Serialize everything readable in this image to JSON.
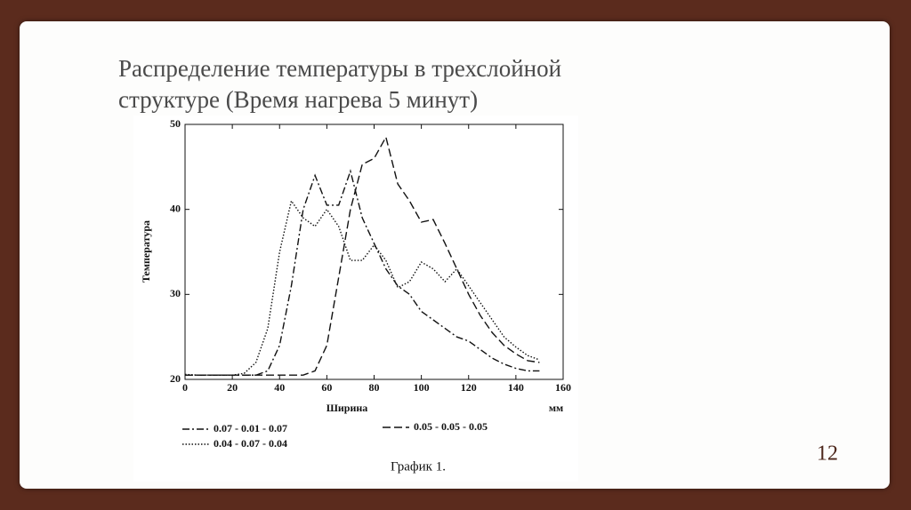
{
  "slide": {
    "title_lines": [
      "Распределение температуры в трехслойной",
      "структуре (Время нагрева 5 минут)"
    ],
    "caption": "График 1.",
    "page_number": "12"
  },
  "chart_data": {
    "type": "line",
    "xlabel": "Ширина",
    "x_unit": "мм",
    "ylabel": "Температура",
    "x": [
      0,
      5,
      10,
      15,
      20,
      25,
      30,
      35,
      40,
      45,
      50,
      55,
      60,
      65,
      70,
      75,
      80,
      85,
      90,
      95,
      100,
      105,
      110,
      115,
      120,
      125,
      130,
      135,
      140,
      145,
      150
    ],
    "series": [
      {
        "name": "0.07 - 0.01 - 0.07",
        "color": "#111111",
        "dash": "dash-dot",
        "values": [
          20.5,
          20.5,
          20.5,
          20.5,
          20.5,
          20.5,
          20.5,
          21,
          24,
          31,
          40,
          44,
          40.5,
          40.5,
          44.5,
          39,
          36,
          33,
          31,
          30,
          28,
          27,
          26,
          25,
          24.5,
          23.5,
          22.5,
          21.8,
          21.3,
          21,
          21
        ]
      },
      {
        "name": "0.04 - 0.07 - 0.04",
        "color": "#111111",
        "dash": "dotted",
        "values": [
          20.6,
          20.5,
          20.5,
          20.5,
          20.5,
          20.7,
          22,
          26,
          35,
          41,
          39,
          38,
          40,
          38,
          34,
          34,
          35.8,
          34,
          30.8,
          31.5,
          33.8,
          33,
          31.5,
          33,
          31,
          29,
          27,
          25,
          23.8,
          22.8,
          22.3
        ]
      },
      {
        "name": "0.05 - 0.05 - 0.05",
        "color": "#111111",
        "dash": "dashed",
        "values": [
          20.5,
          20.5,
          20.5,
          20.5,
          20.5,
          20.5,
          20.5,
          20.5,
          20.5,
          20.5,
          20.5,
          21,
          24,
          32,
          40,
          45.3,
          46,
          48.5,
          43,
          41,
          38.5,
          38.8,
          36,
          33,
          30,
          27.5,
          25.5,
          24,
          23,
          22.2,
          22
        ]
      }
    ],
    "xlim": [
      0,
      160
    ],
    "xticks": [
      0,
      20,
      40,
      60,
      80,
      100,
      120,
      140,
      160
    ],
    "ylim": [
      20,
      50
    ],
    "yticks": [
      20,
      30,
      40,
      50
    ]
  }
}
